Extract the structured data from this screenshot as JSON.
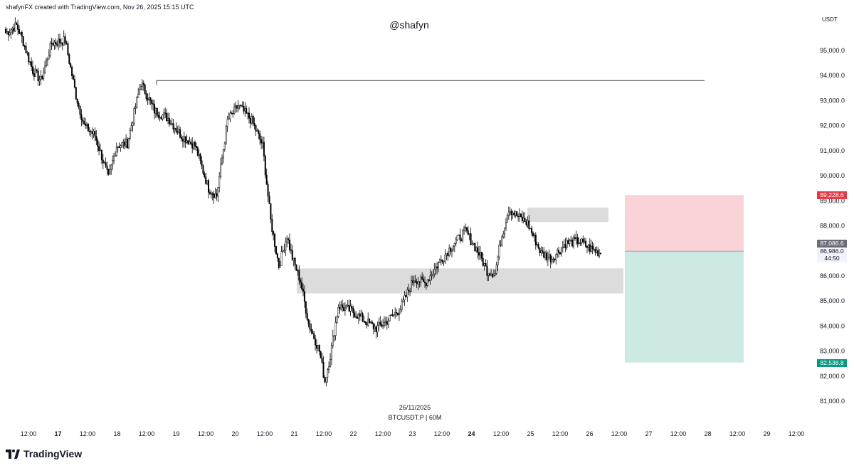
{
  "header": {
    "attribution": "shafynFX created with TradingView.com, Nov 26, 2025 15:15 UTC"
  },
  "watermark": "@shafyn",
  "price_axis": {
    "unit": "USDT",
    "stop_tag": "89,228.6",
    "last_close_tag": "87,086.6",
    "current_tag": "86,986.0",
    "countdown_tag": "44:50",
    "target_tag": "82,538.8"
  },
  "center_note": {
    "date": "26/11/2025",
    "symbol": "BTCUSDT.P | 60M"
  },
  "logo": {
    "text": "TradingView"
  },
  "colors": {
    "up_candle": "#ffffff",
    "down_candle": "#000000",
    "wick": "#000000",
    "zone": "#dcdcdc",
    "stop_zone": "#f9d3d8",
    "target_zone": "#cce9e3",
    "level_line": "#444444"
  },
  "chart_data": {
    "type": "candlestick",
    "symbol": "BTCUSDT.P",
    "interval": "60M",
    "ylim": [
      80500,
      96000
    ],
    "y_ticks": [
      81000,
      82000,
      83000,
      84000,
      85000,
      86000,
      87000,
      88000,
      89000,
      90000,
      91000,
      92000,
      93000,
      94000,
      95000
    ],
    "y_tick_labels": [
      "81,000.0",
      "82,000.0",
      "83,000.0",
      "84,000.0",
      "85,000.0",
      "86,000.0",
      "87,000.0",
      "88,000.0",
      "89,000.0",
      "90,000.0",
      "91,000.0",
      "92,000.0",
      "93,000.0",
      "94,000.0",
      "95,000.0"
    ],
    "x_ticks": [
      {
        "label": "12:00",
        "day": false
      },
      {
        "label": "17",
        "day": true
      },
      {
        "label": "12:00",
        "day": false
      },
      {
        "label": "18",
        "day": false
      },
      {
        "label": "12:00",
        "day": false
      },
      {
        "label": "19",
        "day": false
      },
      {
        "label": "12:00",
        "day": false
      },
      {
        "label": "20",
        "day": false
      },
      {
        "label": "12:00",
        "day": false
      },
      {
        "label": "21",
        "day": false
      },
      {
        "label": "12:00",
        "day": false
      },
      {
        "label": "22",
        "day": false
      },
      {
        "label": "12:00",
        "day": false
      },
      {
        "label": "23",
        "day": false
      },
      {
        "label": "12:00",
        "day": false
      },
      {
        "label": "24",
        "day": true
      },
      {
        "label": "12:00",
        "day": false
      },
      {
        "label": "25",
        "day": false
      },
      {
        "label": "12:00",
        "day": false
      },
      {
        "label": "26",
        "day": false
      },
      {
        "label": "12:00",
        "day": false
      },
      {
        "label": "27",
        "day": false
      },
      {
        "label": "12:00",
        "day": false
      },
      {
        "label": "28",
        "day": false
      },
      {
        "label": "12:00",
        "day": false
      },
      {
        "label": "29",
        "day": false
      },
      {
        "label": "12:00",
        "day": false
      }
    ],
    "price_path_keypoints": [
      [
        0,
        95700
      ],
      [
        8,
        96000
      ],
      [
        12,
        95500
      ],
      [
        20,
        94200
      ],
      [
        26,
        93800
      ],
      [
        34,
        95300
      ],
      [
        44,
        95400
      ],
      [
        52,
        93200
      ],
      [
        58,
        92000
      ],
      [
        66,
        91600
      ],
      [
        72,
        90600
      ],
      [
        76,
        89900
      ],
      [
        82,
        91200
      ],
      [
        90,
        91300
      ],
      [
        100,
        93700
      ],
      [
        110,
        92600
      ],
      [
        120,
        92300
      ],
      [
        130,
        91600
      ],
      [
        140,
        91200
      ],
      [
        150,
        89500
      ],
      [
        156,
        89200
      ],
      [
        164,
        92200
      ],
      [
        172,
        92800
      ],
      [
        182,
        92200
      ],
      [
        190,
        91200
      ],
      [
        196,
        88200
      ],
      [
        202,
        86400
      ],
      [
        208,
        87600
      ],
      [
        212,
        86700
      ],
      [
        218,
        85800
      ],
      [
        224,
        84100
      ],
      [
        232,
        83000
      ],
      [
        236,
        81800
      ],
      [
        240,
        82800
      ],
      [
        246,
        84800
      ],
      [
        256,
        84600
      ],
      [
        266,
        84200
      ],
      [
        274,
        83900
      ],
      [
        282,
        84200
      ],
      [
        292,
        84700
      ],
      [
        302,
        85900
      ],
      [
        310,
        85700
      ],
      [
        320,
        86500
      ],
      [
        330,
        87200
      ],
      [
        340,
        87800
      ],
      [
        350,
        86900
      ],
      [
        356,
        86200
      ],
      [
        362,
        86100
      ],
      [
        366,
        87400
      ],
      [
        372,
        88700
      ],
      [
        378,
        88400
      ],
      [
        386,
        88100
      ],
      [
        396,
        86900
      ],
      [
        404,
        86700
      ],
      [
        414,
        87300
      ],
      [
        424,
        87400
      ],
      [
        432,
        87100
      ],
      [
        440,
        86900
      ]
    ],
    "horizontal_level": 93800,
    "zones": [
      {
        "name": "supply-zone",
        "y_low": 88150,
        "y_high": 88730
      },
      {
        "name": "demand-zone",
        "y_low": 85300,
        "y_high": 86300
      }
    ],
    "position": {
      "type": "short",
      "entry": 86986.0,
      "stop": 89228.6,
      "target": 82538.8
    },
    "last_close": 87086.6,
    "current_price": 86986.0
  }
}
